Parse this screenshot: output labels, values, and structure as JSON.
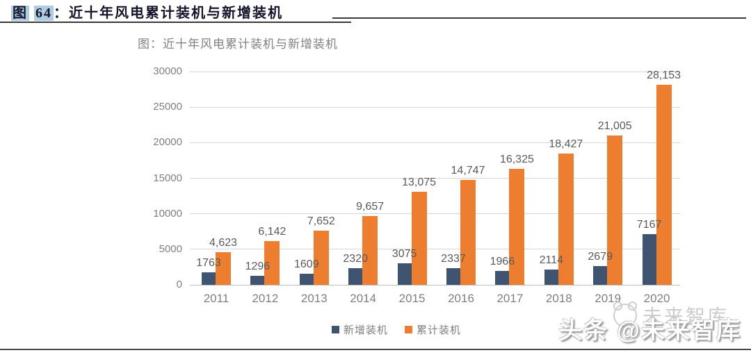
{
  "header": {
    "token_figure": "图",
    "token_number": "64",
    "separator": "：",
    "title_rest": "近十年风电累计装机与新增装机",
    "highlight_color": "#aecde3"
  },
  "chart_data": {
    "type": "bar",
    "title": "图：近十年风电累计装机与新增装机",
    "categories": [
      "2011",
      "2012",
      "2013",
      "2014",
      "2015",
      "2016",
      "2017",
      "2018",
      "2019",
      "2020"
    ],
    "series": [
      {
        "name": "新增装机",
        "color": "#3e5470",
        "values": [
          1763,
          1296,
          1609,
          2320,
          3075,
          2337,
          1966,
          2114,
          2679,
          7167
        ],
        "labels": [
          "1763",
          "1296",
          "1609",
          "2320",
          "3075",
          "2337",
          "1966",
          "2114",
          "2679",
          "7167"
        ]
      },
      {
        "name": "累计装机",
        "color": "#ed7d2f",
        "values": [
          4623,
          6142,
          7652,
          9657,
          13075,
          14747,
          16325,
          18427,
          21005,
          28153
        ],
        "labels": [
          "4,623",
          "6,142",
          "7,652",
          "9,657",
          "13,075",
          "14,747",
          "16,325",
          "18,427",
          "21,005",
          "28,153"
        ]
      }
    ],
    "ylim": [
      0,
      30000
    ],
    "yticks": [
      0,
      5000,
      10000,
      15000,
      20000,
      25000,
      30000
    ],
    "ytick_labels": [
      "0",
      "5000",
      "10000",
      "15000",
      "20000",
      "25000",
      "30000"
    ],
    "xlabel": "",
    "ylabel": "",
    "grid": true,
    "legend_position": "bottom",
    "label_color": "#595959",
    "axis_text_color": "#7f7f7f",
    "gridline_color": "#d6d6d6"
  },
  "watermark": {
    "faint_text": "未来智库",
    "bold_text": "头条 @未来智库"
  }
}
